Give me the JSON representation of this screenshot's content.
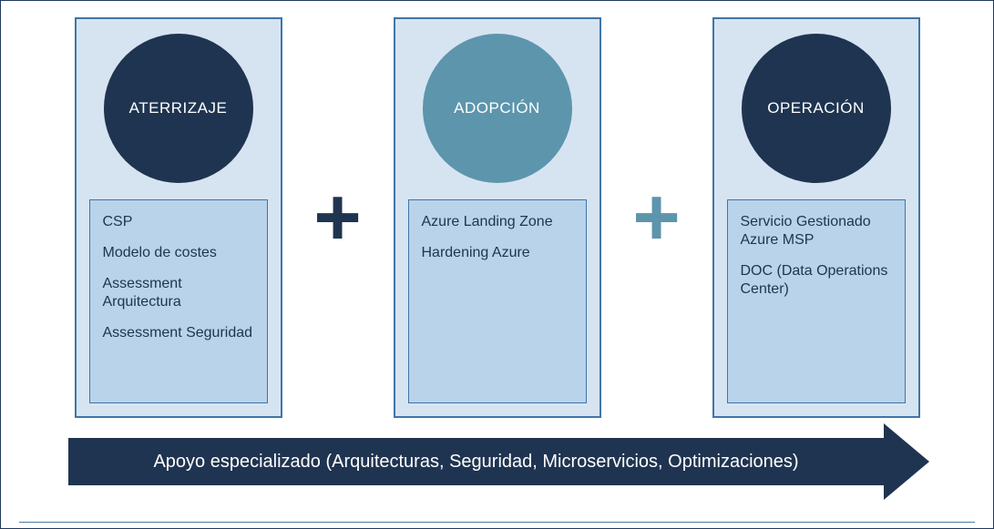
{
  "frame": {
    "border_color": "#1f3a5f",
    "border_width": 1
  },
  "colors": {
    "col_bg": "#d6e4f2",
    "col_border": "#3f75a8",
    "items_bg": "#b8d3ea",
    "items_border": "#3f75a8",
    "items_text": "#1f3450",
    "circle1": "#1f3450",
    "circle2": "#5d95ac",
    "circle3": "#1f3450",
    "plus1": "#1f3450",
    "plus2": "#5d95ac",
    "arrow_bg": "#1f3450",
    "arrow_text": "#ffffff",
    "bottom_line": "#4a7aa8"
  },
  "columns": [
    {
      "title": "ATERRIZAJE",
      "circle_color_key": "circle1",
      "items": [
        "CSP",
        "Modelo de costes",
        "Assessment Arquitectura",
        "Assessment Seguridad"
      ]
    },
    {
      "title": "ADOPCIÓN",
      "circle_color_key": "circle2",
      "items": [
        "Azure Landing Zone",
        "Hardening Azure"
      ]
    },
    {
      "title": "OPERACIÓN",
      "circle_color_key": "circle3",
      "items": [
        "Servicio Gestionado Azure MSP",
        "DOC (Data Operations Center)"
      ]
    }
  ],
  "plus_symbols": [
    "+",
    "+"
  ],
  "arrow_label": "Apoyo especializado (Arquitecturas, Seguridad, Microservicios, Optimizaciones)"
}
